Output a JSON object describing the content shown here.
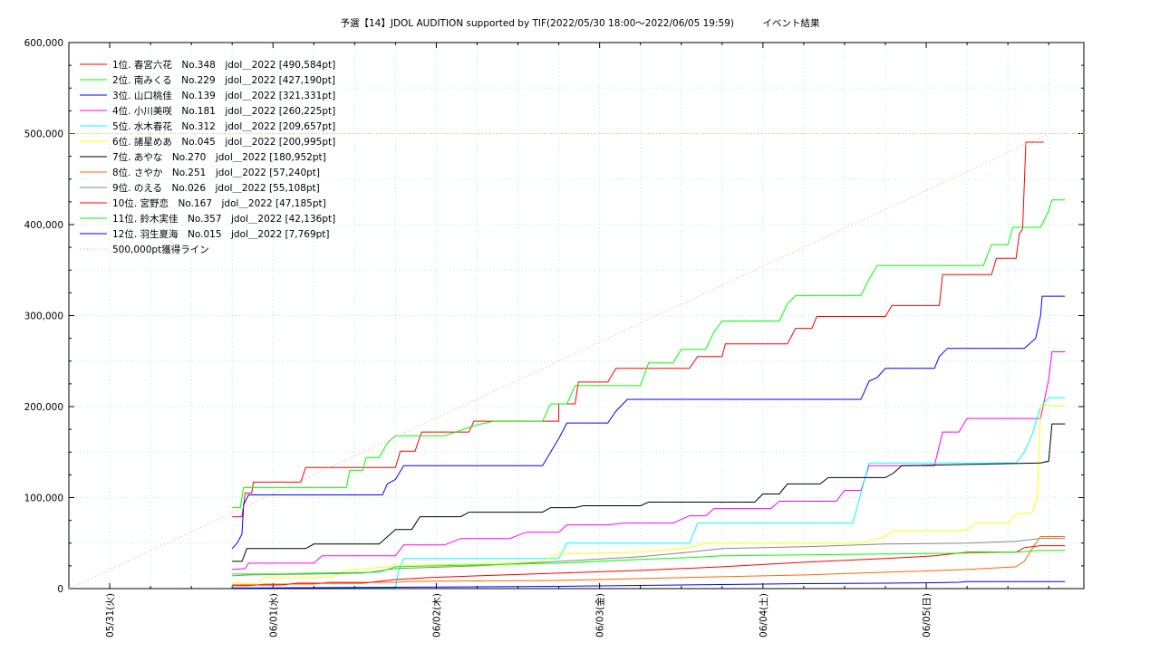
{
  "chart_data": {
    "type": "line",
    "title": "予選【14】JDOL AUDITION supported by TIF(2022/05/30 18:00～2022/06/05 19:59)　　　イベント結果",
    "xlabel": "",
    "ylabel": "",
    "x_tick_labels": [
      "05/31(火)",
      "06/01(水)",
      "06/02(木)",
      "06/03(金)",
      "06/04(土)",
      "06/05(日)"
    ],
    "y_tick_labels": [
      "0",
      "100,000",
      "200,000",
      "300,000",
      "400,000",
      "500,000",
      "600,000"
    ],
    "ylim": [
      0,
      600000
    ],
    "xlim_days": [
      0,
      6.0
    ],
    "grid": true,
    "legend_position": "top-left",
    "colors": [
      "#ff0000",
      "#00ff00",
      "#0000ff",
      "#ff00ff",
      "#00ffff",
      "#ffff00",
      "#000000",
      "#ff6600",
      "#888888",
      "#ff0000",
      "#00ff00",
      "#0000ff",
      "#ff9999"
    ],
    "series": [
      {
        "name": "1位. 春宮六花　No.348　jdol＿2022 [490,584pt]",
        "points": [
          [
            1.0,
            79000
          ],
          [
            1.06,
            79000
          ],
          [
            1.08,
            105000
          ],
          [
            1.12,
            105000
          ],
          [
            1.13,
            117000
          ],
          [
            1.42,
            117000
          ],
          [
            1.45,
            133000
          ],
          [
            1.72,
            133000
          ],
          [
            2.0,
            133000
          ],
          [
            2.03,
            151000
          ],
          [
            2.12,
            151000
          ],
          [
            2.16,
            172000
          ],
          [
            2.45,
            172000
          ],
          [
            2.48,
            184000
          ],
          [
            3.0,
            184000
          ],
          [
            3.0,
            203000
          ],
          [
            3.1,
            203000
          ],
          [
            3.12,
            227000
          ],
          [
            3.3,
            227000
          ],
          [
            3.35,
            242000
          ],
          [
            3.8,
            242000
          ],
          [
            3.85,
            255000
          ],
          [
            4.0,
            255000
          ],
          [
            4.02,
            269000
          ],
          [
            4.4,
            269000
          ],
          [
            4.45,
            286000
          ],
          [
            4.55,
            286000
          ],
          [
            4.58,
            299000
          ],
          [
            5.0,
            299000
          ],
          [
            5.04,
            311000
          ],
          [
            5.33,
            311000
          ],
          [
            5.35,
            345000
          ],
          [
            5.65,
            345000
          ],
          [
            5.68,
            363000
          ],
          [
            5.8,
            363000
          ],
          [
            5.82,
            390000
          ],
          [
            5.84,
            395000
          ],
          [
            5.86,
            490584
          ],
          [
            5.97,
            490584
          ]
        ]
      },
      {
        "name": "2位. 南みくる　No.229　jdol＿2022 [427,190pt]",
        "points": [
          [
            1.0,
            89000
          ],
          [
            1.05,
            89000
          ],
          [
            1.07,
            111000
          ],
          [
            1.7,
            111000
          ],
          [
            1.72,
            130000
          ],
          [
            1.8,
            130000
          ],
          [
            1.82,
            144000
          ],
          [
            1.9,
            144000
          ],
          [
            1.95,
            160000
          ],
          [
            2.0,
            168000
          ],
          [
            2.3,
            168000
          ],
          [
            2.5,
            180000
          ],
          [
            2.6,
            184000
          ],
          [
            2.9,
            184000
          ],
          [
            2.95,
            203000
          ],
          [
            3.05,
            203000
          ],
          [
            3.1,
            223000
          ],
          [
            3.5,
            223000
          ],
          [
            3.55,
            248000
          ],
          [
            3.7,
            248000
          ],
          [
            3.75,
            263000
          ],
          [
            3.9,
            263000
          ],
          [
            3.95,
            282000
          ],
          [
            4.0,
            294000
          ],
          [
            4.35,
            294000
          ],
          [
            4.4,
            313000
          ],
          [
            4.45,
            322000
          ],
          [
            4.85,
            322000
          ],
          [
            4.9,
            340000
          ],
          [
            4.95,
            355000
          ],
          [
            5.6,
            355000
          ],
          [
            5.65,
            378000
          ],
          [
            5.75,
            378000
          ],
          [
            5.78,
            397000
          ],
          [
            5.95,
            397000
          ],
          [
            6.0,
            415000
          ],
          [
            6.02,
            427190
          ],
          [
            6.1,
            427190
          ]
        ]
      },
      {
        "name": "3位. 山口桃佳　No.139　jdol＿2022 [321,331pt]",
        "points": [
          [
            1.0,
            44000
          ],
          [
            1.03,
            50000
          ],
          [
            1.06,
            60000
          ],
          [
            1.07,
            92000
          ],
          [
            1.1,
            103000
          ],
          [
            1.92,
            103000
          ],
          [
            1.95,
            115000
          ],
          [
            2.0,
            120000
          ],
          [
            2.05,
            135000
          ],
          [
            2.9,
            135000
          ],
          [
            2.95,
            150000
          ],
          [
            3.0,
            165000
          ],
          [
            3.05,
            182000
          ],
          [
            3.3,
            182000
          ],
          [
            3.35,
            195000
          ],
          [
            3.42,
            208000
          ],
          [
            4.85,
            208000
          ],
          [
            4.9,
            228000
          ],
          [
            4.95,
            232000
          ],
          [
            5.0,
            242000
          ],
          [
            5.3,
            242000
          ],
          [
            5.33,
            255000
          ],
          [
            5.38,
            264000
          ],
          [
            5.85,
            264000
          ],
          [
            5.92,
            275000
          ],
          [
            5.95,
            300000
          ],
          [
            5.96,
            321331
          ],
          [
            6.1,
            321331
          ]
        ]
      },
      {
        "name": "4位. 小川美咲　No.181　jdol＿2022 [260,225pt]",
        "points": [
          [
            1.0,
            21000
          ],
          [
            1.08,
            22000
          ],
          [
            1.1,
            28000
          ],
          [
            1.5,
            28000
          ],
          [
            1.55,
            36000
          ],
          [
            2.0,
            36000
          ],
          [
            2.05,
            48000
          ],
          [
            2.3,
            48000
          ],
          [
            2.4,
            55000
          ],
          [
            2.7,
            55000
          ],
          [
            2.8,
            62000
          ],
          [
            3.0,
            62000
          ],
          [
            3.05,
            70000
          ],
          [
            3.3,
            70000
          ],
          [
            3.4,
            72000
          ],
          [
            3.7,
            72000
          ],
          [
            3.8,
            80000
          ],
          [
            3.9,
            80000
          ],
          [
            3.95,
            88000
          ],
          [
            4.3,
            88000
          ],
          [
            4.35,
            96000
          ],
          [
            4.7,
            96000
          ],
          [
            4.75,
            108000
          ],
          [
            4.85,
            108000
          ],
          [
            4.9,
            135000
          ],
          [
            5.3,
            135000
          ],
          [
            5.35,
            172000
          ],
          [
            5.45,
            172000
          ],
          [
            5.5,
            187000
          ],
          [
            5.95,
            187000
          ],
          [
            6.0,
            230000
          ],
          [
            6.02,
            260225
          ],
          [
            6.1,
            260225
          ]
        ]
      },
      {
        "name": "5位. 水木春花　No.312　jdol＿2022 [209,657pt]",
        "points": [
          [
            1.0,
            1000
          ],
          [
            2.0,
            1000
          ],
          [
            2.02,
            20000
          ],
          [
            2.05,
            33000
          ],
          [
            3.0,
            33000
          ],
          [
            3.05,
            50000
          ],
          [
            3.8,
            50000
          ],
          [
            3.85,
            72000
          ],
          [
            4.8,
            72000
          ],
          [
            4.9,
            138000
          ],
          [
            5.8,
            138000
          ],
          [
            5.85,
            150000
          ],
          [
            5.9,
            170000
          ],
          [
            5.95,
            200000
          ],
          [
            6.0,
            209657
          ],
          [
            6.1,
            209657
          ]
        ]
      },
      {
        "name": "6位. 諸星めあ　No.045　jdol＿2022 [200,995pt]",
        "points": [
          [
            1.0,
            6000
          ],
          [
            1.15,
            6000
          ],
          [
            1.2,
            12000
          ],
          [
            1.6,
            12000
          ],
          [
            1.7,
            20000
          ],
          [
            2.0,
            25000
          ],
          [
            2.5,
            27000
          ],
          [
            2.9,
            30000
          ],
          [
            3.0,
            38000
          ],
          [
            3.5,
            40000
          ],
          [
            3.8,
            45000
          ],
          [
            3.9,
            50000
          ],
          [
            4.85,
            50000
          ],
          [
            5.0,
            57000
          ],
          [
            5.05,
            64000
          ],
          [
            5.5,
            64000
          ],
          [
            5.55,
            72000
          ],
          [
            5.75,
            72000
          ],
          [
            5.8,
            82000
          ],
          [
            5.9,
            84000
          ],
          [
            5.93,
            100000
          ],
          [
            5.95,
            200995
          ],
          [
            6.1,
            200995
          ]
        ]
      },
      {
        "name": "7位. あやな　No.270　jdol＿2022 [180,952pt]",
        "points": [
          [
            1.0,
            30000
          ],
          [
            1.06,
            30000
          ],
          [
            1.09,
            44000
          ],
          [
            1.45,
            44000
          ],
          [
            1.5,
            49000
          ],
          [
            1.9,
            49000
          ],
          [
            2.0,
            65000
          ],
          [
            2.1,
            65000
          ],
          [
            2.15,
            79000
          ],
          [
            2.4,
            79000
          ],
          [
            2.45,
            84000
          ],
          [
            2.9,
            84000
          ],
          [
            2.95,
            89000
          ],
          [
            3.1,
            89000
          ],
          [
            3.15,
            91000
          ],
          [
            3.5,
            91000
          ],
          [
            3.55,
            95000
          ],
          [
            4.2,
            95000
          ],
          [
            4.25,
            104000
          ],
          [
            4.35,
            104000
          ],
          [
            4.4,
            115000
          ],
          [
            4.6,
            115000
          ],
          [
            4.65,
            122000
          ],
          [
            5.0,
            122000
          ],
          [
            5.05,
            127000
          ],
          [
            5.1,
            135000
          ],
          [
            5.95,
            138000
          ],
          [
            6.0,
            140000
          ],
          [
            6.02,
            181000
          ],
          [
            6.1,
            180952
          ]
        ]
      },
      {
        "name": "8位. さやか　No.251　jdol＿2022 [57,240pt]",
        "points": [
          [
            1.0,
            3000
          ],
          [
            1.1,
            3000
          ],
          [
            1.2,
            5000
          ],
          [
            1.5,
            5000
          ],
          [
            1.6,
            7000
          ],
          [
            2.0,
            7000
          ],
          [
            2.1,
            8000
          ],
          [
            3.0,
            9000
          ],
          [
            3.5,
            11000
          ],
          [
            4.0,
            13000
          ],
          [
            4.5,
            15000
          ],
          [
            5.0,
            18000
          ],
          [
            5.5,
            21000
          ],
          [
            5.8,
            24000
          ],
          [
            5.85,
            30000
          ],
          [
            5.92,
            50000
          ],
          [
            5.95,
            57240
          ],
          [
            6.1,
            57240
          ]
        ]
      },
      {
        "name": "9位. のえる　No.026　jdol＿2022 [55,108pt]",
        "points": [
          [
            1.0,
            14000
          ],
          [
            1.1,
            15000
          ],
          [
            1.5,
            16000
          ],
          [
            1.8,
            17000
          ],
          [
            2.0,
            22000
          ],
          [
            2.5,
            25000
          ],
          [
            3.0,
            30000
          ],
          [
            3.5,
            35000
          ],
          [
            3.8,
            40000
          ],
          [
            4.0,
            44000
          ],
          [
            4.5,
            46000
          ],
          [
            5.0,
            49000
          ],
          [
            5.5,
            50000
          ],
          [
            5.8,
            52000
          ],
          [
            5.95,
            55108
          ],
          [
            6.1,
            55108
          ]
        ]
      },
      {
        "name": "10位. 宮野恋　No.167　jdol＿2022 [47,185pt]",
        "points": [
          [
            1.0,
            4000
          ],
          [
            1.3,
            4000
          ],
          [
            1.4,
            6000
          ],
          [
            1.8,
            6000
          ],
          [
            2.0,
            10000
          ],
          [
            2.2,
            12000
          ],
          [
            2.5,
            14000
          ],
          [
            3.0,
            17000
          ],
          [
            3.5,
            20000
          ],
          [
            4.0,
            24000
          ],
          [
            4.5,
            29000
          ],
          [
            5.0,
            33000
          ],
          [
            5.3,
            36000
          ],
          [
            5.5,
            40000
          ],
          [
            5.8,
            40000
          ],
          [
            5.85,
            45000
          ],
          [
            5.95,
            47185
          ],
          [
            6.1,
            47185
          ]
        ]
      },
      {
        "name": "11位. 鈴木実佳　No.357　jdol＿2022 [42,136pt]",
        "points": [
          [
            1.0,
            16000
          ],
          [
            1.3,
            16000
          ],
          [
            1.5,
            17000
          ],
          [
            1.9,
            18000
          ],
          [
            2.0,
            24000
          ],
          [
            2.5,
            26000
          ],
          [
            3.0,
            28000
          ],
          [
            3.5,
            32000
          ],
          [
            3.8,
            34000
          ],
          [
            4.0,
            36000
          ],
          [
            4.5,
            37000
          ],
          [
            5.0,
            38000
          ],
          [
            5.5,
            39000
          ],
          [
            5.8,
            40000
          ],
          [
            5.95,
            42136
          ],
          [
            6.1,
            42136
          ]
        ]
      },
      {
        "name": "12位. 羽生夏海　No.015　jdol＿2022 [7,769pt]",
        "points": [
          [
            1.0,
            500
          ],
          [
            1.5,
            1000
          ],
          [
            2.0,
            1500
          ],
          [
            2.5,
            2000
          ],
          [
            3.0,
            2500
          ],
          [
            3.5,
            3500
          ],
          [
            4.0,
            4500
          ],
          [
            4.5,
            5500
          ],
          [
            5.0,
            6000
          ],
          [
            5.3,
            6500
          ],
          [
            5.45,
            7000
          ],
          [
            5.5,
            7769
          ],
          [
            6.1,
            7769
          ]
        ]
      },
      {
        "name": "500,000pt獲得ライン",
        "dotted": true,
        "points": [
          [
            0.0,
            0
          ],
          [
            6.0,
            500000
          ]
        ]
      }
    ]
  }
}
